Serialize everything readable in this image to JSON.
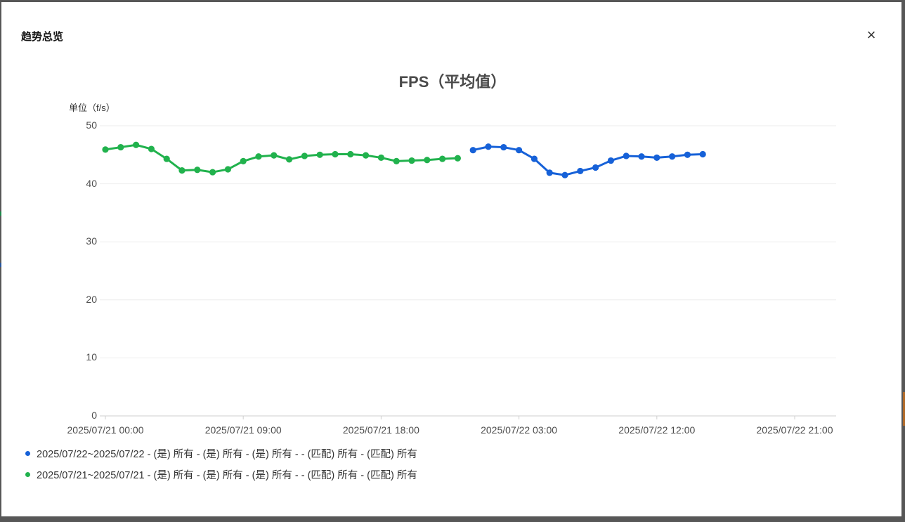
{
  "dialog": {
    "title": "趋势总览",
    "close_label": "×"
  },
  "chart_data": {
    "type": "line",
    "title": "FPS（平均值）",
    "unit_label": "单位（f/s）",
    "ylim": [
      0,
      50
    ],
    "y_ticks": [
      0,
      10,
      20,
      30,
      40,
      50
    ],
    "grid": true,
    "legend_position": "bottom-left",
    "x_axis": {
      "kind": "time",
      "range_hours": [
        0,
        47.7
      ],
      "ticks": [
        {
          "hour": 0,
          "label": "2025/07/21 00:00"
        },
        {
          "hour": 9,
          "label": "2025/07/21 09:00"
        },
        {
          "hour": 18,
          "label": "2025/07/21 18:00"
        },
        {
          "hour": 27,
          "label": "2025/07/22 03:00"
        },
        {
          "hour": 36,
          "label": "2025/07/22 12:00"
        },
        {
          "hour": 45,
          "label": "2025/07/22 21:00"
        }
      ]
    },
    "series": [
      {
        "name": "2025/07/22~2025/07/22 - (是) 所有 - (是) 所有 - (是) 所有 -  - (匹配) 所有 - (匹配) 所有",
        "color": "#1661d8",
        "start_hour": 24,
        "interval_hours": 1,
        "values": [
          45.8,
          46.4,
          46.3,
          45.8,
          44.3,
          41.9,
          41.5,
          42.2,
          42.8,
          44.0,
          44.8,
          44.7,
          44.5,
          44.7,
          45.0,
          45.1
        ]
      },
      {
        "name": "2025/07/21~2025/07/21 - (是) 所有 - (是) 所有 - (是) 所有 -  - (匹配) 所有 - (匹配) 所有",
        "color": "#21b24d",
        "start_hour": 0,
        "interval_hours": 1,
        "values": [
          45.9,
          46.3,
          46.7,
          46.0,
          44.3,
          42.3,
          42.4,
          42.0,
          42.5,
          43.9,
          44.7,
          44.9,
          44.2,
          44.8,
          45.0,
          45.1,
          45.1,
          44.9,
          44.5,
          43.9,
          44.0,
          44.1,
          44.3,
          44.4
        ]
      }
    ]
  },
  "colors": {
    "frame": "#575757",
    "grid_line": "#eeeeee",
    "axis_line": "#cfcfcf",
    "tick_text": "#4d4d4d"
  }
}
